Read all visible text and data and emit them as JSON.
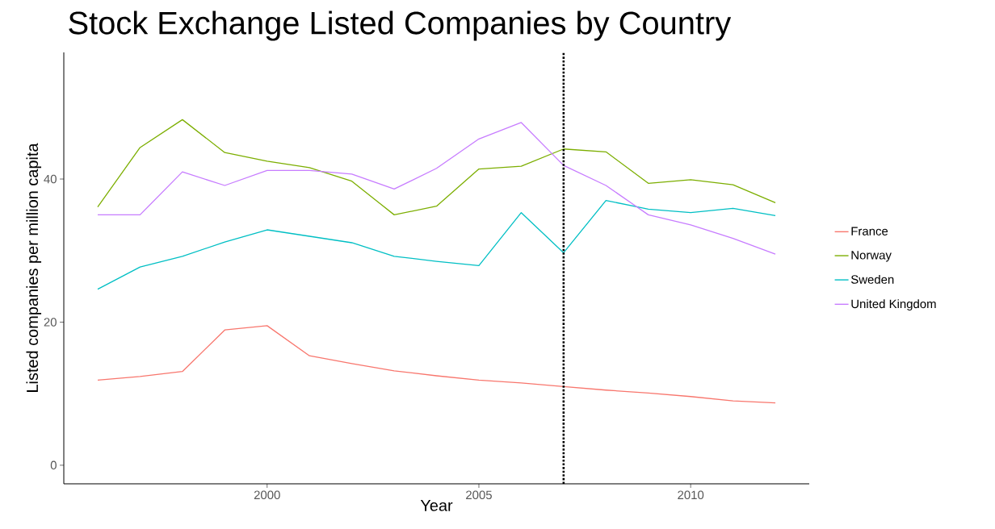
{
  "chart_data": {
    "type": "line",
    "title": "Stock Exchange Listed Companies by Country",
    "xlabel": "Year",
    "ylabel": "Listed companies per million capita",
    "x": [
      1996,
      1997,
      1998,
      1999,
      2000,
      2001,
      2002,
      2003,
      2004,
      2005,
      2006,
      2007,
      2008,
      2009,
      2010,
      2011,
      2012
    ],
    "series": [
      {
        "name": "France",
        "color": "#f8766d",
        "values": [
          11.9,
          12.4,
          13.1,
          18.9,
          19.5,
          15.3,
          14.2,
          13.2,
          12.5,
          11.9,
          11.5,
          11.0,
          10.5,
          10.1,
          9.6,
          9.0,
          8.7
        ]
      },
      {
        "name": "Norway",
        "color": "#7cae00",
        "values": [
          36.1,
          44.4,
          48.3,
          43.7,
          42.5,
          41.6,
          39.7,
          35.0,
          36.2,
          41.4,
          41.8,
          44.2,
          43.8,
          39.4,
          39.9,
          39.2,
          36.7
        ]
      },
      {
        "name": "Sweden",
        "color": "#00bfc4",
        "values": [
          24.6,
          27.7,
          29.2,
          31.2,
          32.9,
          32.0,
          31.1,
          29.2,
          28.5,
          27.9,
          35.3,
          29.7,
          37.0,
          35.8,
          35.3,
          35.9,
          34.9
        ]
      },
      {
        "name": "United Kingdom",
        "color": "#c77cff",
        "values": [
          35.0,
          35.0,
          41.0,
          39.1,
          41.2,
          41.2,
          40.7,
          38.6,
          41.5,
          45.6,
          47.9,
          41.9,
          39.1,
          35.0,
          33.6,
          31.7,
          29.5
        ]
      }
    ],
    "xlim": [
      1995.2,
      2012.8
    ],
    "ylim": [
      -2.6,
      57.7
    ],
    "xticks": [
      2000,
      2005,
      2010
    ],
    "yticks": [
      0,
      20,
      40
    ],
    "ref_lines": [
      {
        "axis": "x",
        "value": 2007,
        "color": "#000000",
        "line_style": "dotted"
      }
    ],
    "grid": false,
    "legend": "right",
    "marker": "none",
    "line_style": "solid"
  }
}
